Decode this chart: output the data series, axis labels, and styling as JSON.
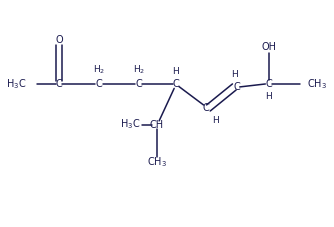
{
  "bg_color": "#ffffff",
  "bond_color": "#1a1a4e",
  "figsize": [
    3.34,
    2.27
  ],
  "dpi": 100,
  "xlim": [
    0,
    10
  ],
  "ylim": [
    0,
    6
  ],
  "main_y": 3.8,
  "fs": 7.0,
  "lw": 1.1
}
